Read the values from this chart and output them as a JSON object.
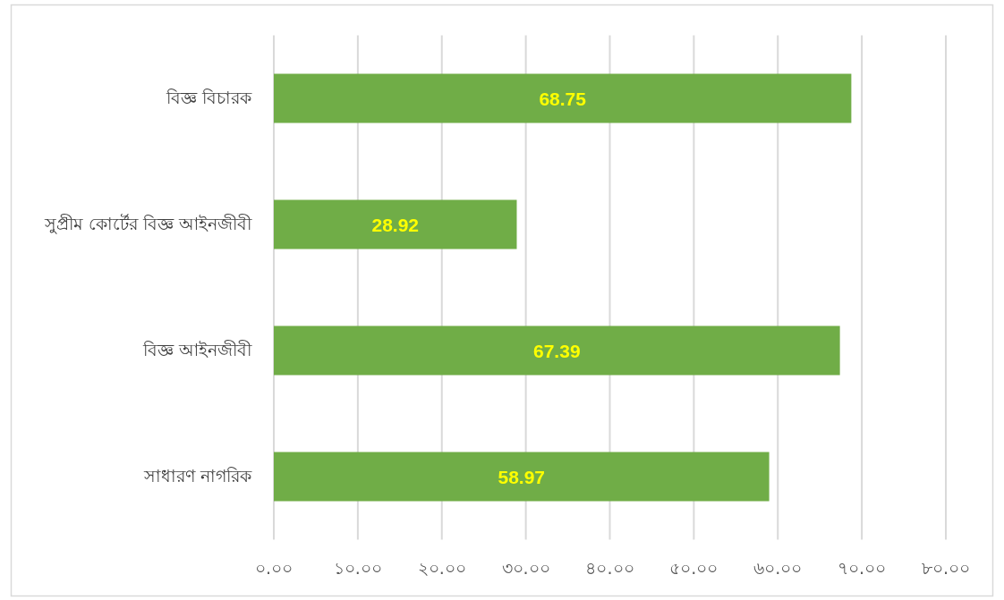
{
  "chart_data": {
    "type": "bar",
    "orientation": "horizontal",
    "categories": [
      "বিজ্ঞ বিচারক",
      "সুপ্রীম কোর্টের বিজ্ঞ আইনজীবী",
      "বিজ্ঞ আইনজীবী",
      "সাধারণ নাগরিক"
    ],
    "values": [
      68.75,
      28.92,
      67.39,
      58.97
    ],
    "color": "#70ad47",
    "xlim": [
      0,
      80
    ],
    "xticks": [
      {
        "value": 0,
        "label": "০.০০"
      },
      {
        "value": 10,
        "label": "১০.০০"
      },
      {
        "value": 20,
        "label": "২০.০০"
      },
      {
        "value": 30,
        "label": "৩০.০০"
      },
      {
        "value": 40,
        "label": "৪০.০০"
      },
      {
        "value": 50,
        "label": "৫০.০০"
      },
      {
        "value": 60,
        "label": "৬০.০০"
      },
      {
        "value": 70,
        "label": "৭০.০০"
      },
      {
        "value": 80,
        "label": "৮০.০০"
      }
    ],
    "grid": "x",
    "data_labels": true
  }
}
